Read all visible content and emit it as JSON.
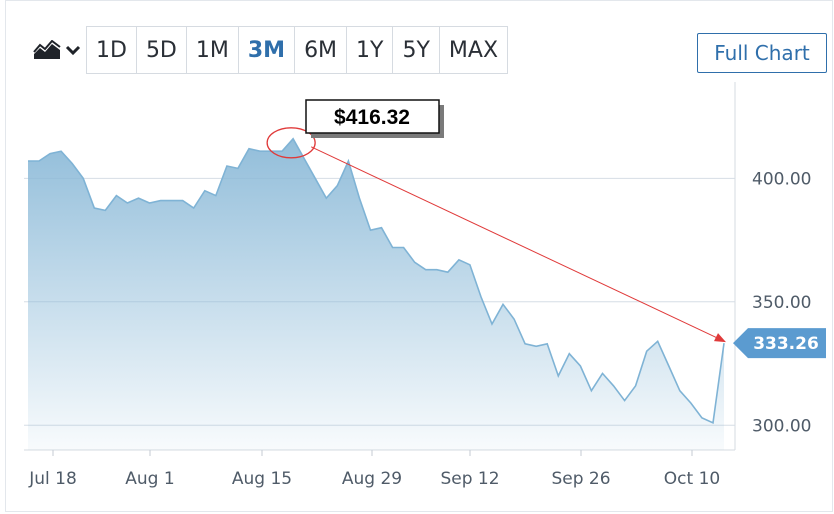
{
  "toolbar": {
    "chart_type_icon": "area-chart-icon",
    "dropdown_icon": "chevron-down-icon",
    "ranges": [
      "1D",
      "5D",
      "1M",
      "3M",
      "6M",
      "1Y",
      "5Y",
      "MAX"
    ],
    "active_range": "3M",
    "full_chart_label": "Full Chart"
  },
  "colors": {
    "accent": "#2f6fab",
    "area_top": "#8cbad8",
    "line": "#7fb3d5",
    "annotation": "#e03a3a",
    "badge": "#5b9bd0"
  },
  "chart_data": {
    "type": "area",
    "x_ticks": [
      "Jul 18",
      "Aug 1",
      "Aug 15",
      "Aug 29",
      "Sep 12",
      "Sep 26",
      "Oct 10"
    ],
    "y_ticks": [
      "400.00",
      "350.00",
      "300.00"
    ],
    "ylim": [
      290,
      439
    ],
    "series": [
      {
        "values": [
          407,
          407,
          410,
          411,
          406,
          400,
          388,
          387,
          393,
          390,
          392,
          390,
          391,
          391,
          391,
          388,
          395,
          393,
          405,
          404,
          412,
          411,
          411,
          411,
          416,
          408,
          400,
          392,
          397,
          407,
          392,
          379,
          380,
          372,
          372,
          366,
          363,
          363,
          362,
          367,
          365,
          352,
          341,
          349,
          343,
          333,
          332,
          333,
          320,
          329,
          324,
          314,
          321,
          316,
          310,
          316,
          330,
          334,
          324,
          314,
          309,
          303,
          301,
          333.26
        ]
      }
    ],
    "grid": true,
    "last_value_label": "333.26",
    "annotation": {
      "label": "$416.32",
      "value": 416.32
    }
  }
}
